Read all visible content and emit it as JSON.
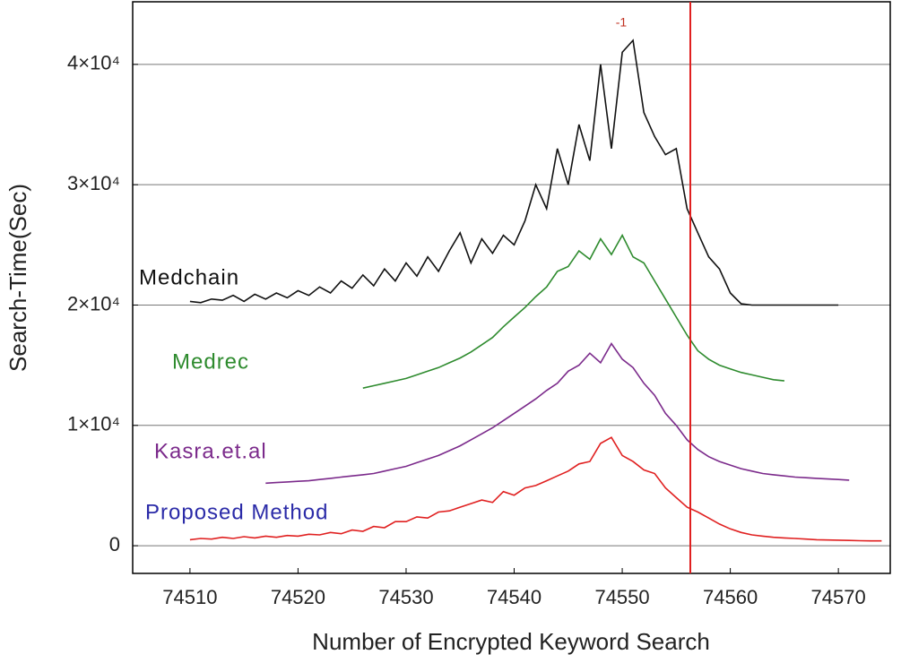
{
  "chart_data": {
    "type": "line",
    "xlabel": "Number of Encrypted Keyword Search",
    "ylabel": "Search-Time(Sec)",
    "annotation": "-1",
    "vline": {
      "x": 74556.3,
      "color": "#e02020"
    },
    "xlim": [
      74504.7,
      74574.8
    ],
    "ylim": [
      -2300,
      45200
    ],
    "xticks": [
      74510,
      74520,
      74530,
      74540,
      74550,
      74560,
      74570
    ],
    "yticks": [
      0,
      {
        "value": 10000,
        "label": "1×10⁴"
      },
      {
        "value": 20000,
        "label": "2×10⁴"
      },
      {
        "value": 30000,
        "label": "3×10⁴"
      },
      {
        "value": 40000,
        "label": "4×10⁴"
      }
    ],
    "grid": true,
    "series": [
      {
        "name": "Medchain",
        "color": "#111111",
        "label_color": "#111111",
        "x": [
          74510,
          74511,
          74512,
          74513,
          74514,
          74515,
          74516,
          74517,
          74518,
          74519,
          74520,
          74521,
          74522,
          74523,
          74524,
          74525,
          74526,
          74527,
          74528,
          74529,
          74530,
          74531,
          74532,
          74533,
          74534,
          74535,
          74536,
          74537,
          74538,
          74539,
          74540,
          74541,
          74542,
          74543,
          74544,
          74545,
          74546,
          74547,
          74548,
          74549,
          74550,
          74551,
          74552,
          74553,
          74554,
          74555,
          74556,
          74557,
          74558,
          74559,
          74560,
          74561,
          74562,
          74563,
          74564,
          74565,
          74566,
          74567,
          74568,
          74569,
          74570
        ],
        "values": [
          20300,
          20200,
          20500,
          20400,
          20800,
          20300,
          20900,
          20500,
          21000,
          20600,
          21200,
          20800,
          21500,
          21000,
          22000,
          21400,
          22500,
          21600,
          23000,
          22000,
          23500,
          22400,
          24000,
          22800,
          24500,
          26000,
          23500,
          25500,
          24300,
          25800,
          25000,
          27000,
          30000,
          28000,
          33000,
          30000,
          35000,
          32000,
          40000,
          33000,
          41000,
          42000,
          36000,
          34000,
          32500,
          33000,
          28000,
          26000,
          24000,
          23000,
          21000,
          20100,
          20000,
          20000,
          20000,
          20000,
          20000,
          20000,
          20000,
          20000,
          20000
        ]
      },
      {
        "name": "Medrec",
        "color": "#2e8b2e",
        "label_color": "#2e8b2e",
        "x": [
          74526,
          74527,
          74528,
          74529,
          74530,
          74531,
          74532,
          74533,
          74534,
          74535,
          74536,
          74537,
          74538,
          74539,
          74540,
          74541,
          74542,
          74543,
          74544,
          74545,
          74546,
          74547,
          74548,
          74549,
          74550,
          74551,
          74552,
          74553,
          74554,
          74555,
          74556,
          74557,
          74558,
          74559,
          74560,
          74561,
          74562,
          74563,
          74564,
          74565
        ],
        "values": [
          13100,
          13300,
          13500,
          13700,
          13900,
          14200,
          14500,
          14800,
          15200,
          15600,
          16100,
          16700,
          17300,
          18200,
          19000,
          19800,
          20700,
          21500,
          22800,
          23200,
          24500,
          23800,
          25500,
          24200,
          25800,
          24000,
          23500,
          22000,
          20500,
          19000,
          17500,
          16200,
          15500,
          15000,
          14700,
          14400,
          14200,
          14000,
          13800,
          13700
        ]
      },
      {
        "name": "Kasra.et.al",
        "color": "#7b2a8b",
        "label_color": "#7b2a8b",
        "x": [
          74517,
          74518,
          74519,
          74520,
          74521,
          74522,
          74523,
          74524,
          74525,
          74526,
          74527,
          74528,
          74529,
          74530,
          74531,
          74532,
          74533,
          74534,
          74535,
          74536,
          74537,
          74538,
          74539,
          74540,
          74541,
          74542,
          74543,
          74544,
          74545,
          74546,
          74547,
          74548,
          74549,
          74550,
          74551,
          74552,
          74553,
          74554,
          74555,
          74556,
          74557,
          74558,
          74559,
          74560,
          74561,
          74562,
          74563,
          74564,
          74565,
          74566,
          74567,
          74568,
          74569,
          74570,
          74571
        ],
        "values": [
          5200,
          5250,
          5300,
          5350,
          5400,
          5500,
          5600,
          5700,
          5800,
          5900,
          6000,
          6200,
          6400,
          6600,
          6900,
          7200,
          7500,
          7900,
          8300,
          8800,
          9300,
          9800,
          10400,
          11000,
          11600,
          12200,
          12900,
          13500,
          14500,
          15000,
          16000,
          15200,
          16800,
          15500,
          14800,
          13500,
          12500,
          11000,
          10000,
          8800,
          8000,
          7400,
          7000,
          6700,
          6400,
          6200,
          6000,
          5900,
          5800,
          5700,
          5650,
          5600,
          5550,
          5500,
          5450
        ]
      },
      {
        "name": "Proposed Method",
        "color": "#e02020",
        "label_color": "#2b2ba8",
        "x": [
          74510,
          74511,
          74512,
          74513,
          74514,
          74515,
          74516,
          74517,
          74518,
          74519,
          74520,
          74521,
          74522,
          74523,
          74524,
          74525,
          74526,
          74527,
          74528,
          74529,
          74530,
          74531,
          74532,
          74533,
          74534,
          74535,
          74536,
          74537,
          74538,
          74539,
          74540,
          74541,
          74542,
          74543,
          74544,
          74545,
          74546,
          74547,
          74548,
          74549,
          74550,
          74551,
          74552,
          74553,
          74554,
          74555,
          74556,
          74557,
          74558,
          74559,
          74560,
          74561,
          74562,
          74563,
          74564,
          74565,
          74566,
          74567,
          74568,
          74569,
          74570,
          74571,
          74572,
          74573,
          74574
        ],
        "values": [
          500,
          600,
          550,
          700,
          600,
          750,
          650,
          800,
          700,
          850,
          800,
          950,
          900,
          1100,
          1000,
          1300,
          1200,
          1600,
          1500,
          2000,
          2000,
          2400,
          2300,
          2800,
          2900,
          3200,
          3500,
          3800,
          3600,
          4500,
          4200,
          4800,
          5000,
          5400,
          5800,
          6200,
          6800,
          7000,
          8500,
          9000,
          7500,
          7000,
          6300,
          6000,
          4800,
          4000,
          3200,
          2800,
          2300,
          1800,
          1400,
          1100,
          900,
          800,
          700,
          650,
          600,
          550,
          500,
          480,
          460,
          440,
          420,
          400,
          400
        ]
      }
    ]
  }
}
